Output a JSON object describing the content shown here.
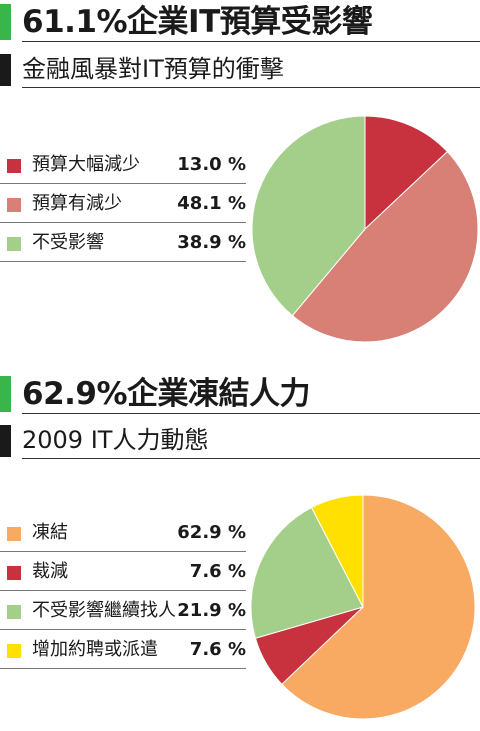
{
  "colors": {
    "title_bar_green": "#3ab54a",
    "subtitle_bar": "#1a1a1a"
  },
  "chart_data": [
    {
      "type": "pie",
      "title": "61.1%企業IT預算受影響",
      "subtitle": "金融風暴對IT預算的衝擊",
      "slices": [
        {
          "label": "預算大幅減少",
          "value": 13.0,
          "value_label": "13.0 %",
          "color": "#c8323f"
        },
        {
          "label": "預算有減少",
          "value": 48.1,
          "value_label": "48.1 %",
          "color": "#d87f76"
        },
        {
          "label": "不受影響",
          "value": 38.9,
          "value_label": "38.9 %",
          "color": "#a3cf8a"
        }
      ]
    },
    {
      "type": "pie",
      "title": "62.9%企業凍結人力",
      "subtitle": "2009 IT人力動態",
      "slices": [
        {
          "label": "凍結",
          "value": 62.9,
          "value_label": "62.9 %",
          "color": "#f8a962"
        },
        {
          "label": "裁減",
          "value": 7.6,
          "value_label": "7.6 %",
          "color": "#c8323f"
        },
        {
          "label": "不受影響繼續找人",
          "value": 21.9,
          "value_label": "21.9 %",
          "color": "#a3cf8a"
        },
        {
          "label": "增加約聘或派遣",
          "value": 7.6,
          "value_label": "7.6 %",
          "color": "#ffe000"
        }
      ]
    }
  ]
}
